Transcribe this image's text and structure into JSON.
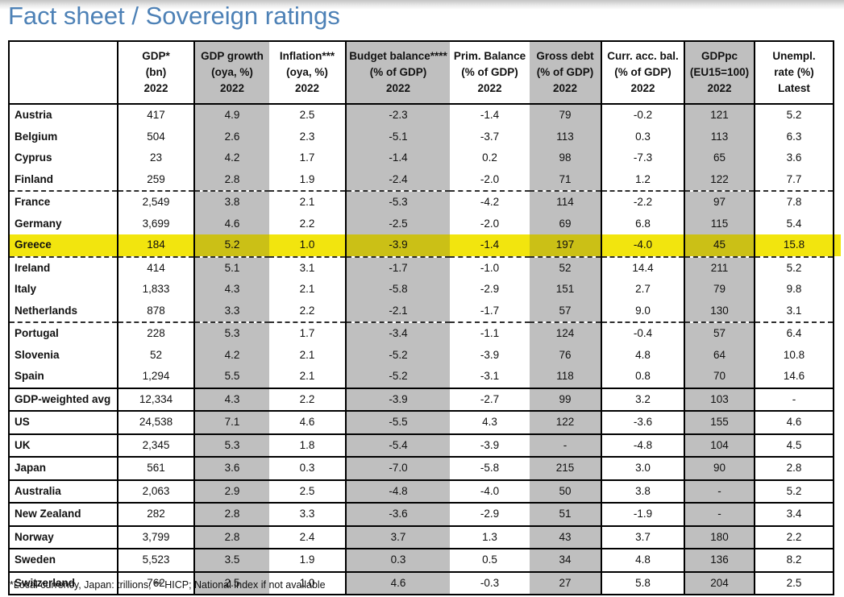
{
  "title": "Fact sheet / Sovereign ratings",
  "footnote": "*Local currency, Japan: trillions; ** HICP; National index if not available",
  "colors": {
    "title": "#4d81b6",
    "shaded_column": "#bfbfbf",
    "highlight": "#f2e50e",
    "highlight_on_shaded": "#cbc016"
  },
  "table": {
    "columns": [
      {
        "id": "country",
        "lines": [
          "",
          "",
          ""
        ],
        "shaded": false
      },
      {
        "id": "gdp",
        "lines": [
          "GDP*",
          "(bn)",
          "2022"
        ],
        "shaded": false
      },
      {
        "id": "gdp-growth",
        "lines": [
          "GDP growth",
          "(oya, %)",
          "2022"
        ],
        "shaded": true
      },
      {
        "id": "inflation",
        "lines": [
          "Inflation***",
          "(oya, %)",
          "2022"
        ],
        "shaded": false
      },
      {
        "id": "budget-balance",
        "lines": [
          "Budget balance****",
          "(% of GDP)",
          "2022"
        ],
        "shaded": true
      },
      {
        "id": "prim-balance",
        "lines": [
          "Prim. Balance",
          "(% of GDP)",
          "2022"
        ],
        "shaded": false
      },
      {
        "id": "gross-debt",
        "lines": [
          "Gross debt",
          "(% of GDP)",
          "2022"
        ],
        "shaded": true
      },
      {
        "id": "curr-acc-bal",
        "lines": [
          "Curr. acc. bal.",
          "(% of GDP)",
          "2022"
        ],
        "shaded": false
      },
      {
        "id": "gdppc",
        "lines": [
          "GDPpc",
          "(EU15=100)",
          "2022"
        ],
        "shaded": true
      },
      {
        "id": "unempl",
        "lines": [
          "Unempl.",
          "rate (%)",
          "Latest"
        ],
        "shaded": false
      }
    ],
    "rows": [
      {
        "country": "Austria",
        "values": [
          "417",
          "4.9",
          "2.5",
          "-2.3",
          "-1.4",
          "79",
          "-0.2",
          "121",
          "5.2"
        ],
        "sep": "none",
        "highlight": false
      },
      {
        "country": "Belgium",
        "values": [
          "504",
          "2.6",
          "2.3",
          "-5.1",
          "-3.7",
          "113",
          "0.3",
          "113",
          "6.3"
        ],
        "sep": "none",
        "highlight": false
      },
      {
        "country": "Cyprus",
        "values": [
          "23",
          "4.2",
          "1.7",
          "-1.4",
          "0.2",
          "98",
          "-7.3",
          "65",
          "3.6"
        ],
        "sep": "none",
        "highlight": false
      },
      {
        "country": "Finland",
        "values": [
          "259",
          "2.8",
          "1.9",
          "-2.4",
          "-2.0",
          "71",
          "1.2",
          "122",
          "7.7"
        ],
        "sep": "none",
        "highlight": false
      },
      {
        "country": "France",
        "values": [
          "2,549",
          "3.8",
          "2.1",
          "-5.3",
          "-4.2",
          "114",
          "-2.2",
          "97",
          "7.8"
        ],
        "sep": "dashed",
        "highlight": false
      },
      {
        "country": "Germany",
        "values": [
          "3,699",
          "4.6",
          "2.2",
          "-2.5",
          "-2.0",
          "69",
          "6.8",
          "115",
          "5.4"
        ],
        "sep": "none",
        "highlight": false
      },
      {
        "country": "Greece",
        "values": [
          "184",
          "5.2",
          "1.0",
          "-3.9",
          "-1.4",
          "197",
          "-4.0",
          "45",
          "15.8"
        ],
        "sep": "none",
        "highlight": true
      },
      {
        "country": "Ireland",
        "values": [
          "414",
          "5.1",
          "3.1",
          "-1.7",
          "-1.0",
          "52",
          "14.4",
          "211",
          "5.2"
        ],
        "sep": "dashed",
        "highlight": false
      },
      {
        "country": "Italy",
        "values": [
          "1,833",
          "4.3",
          "2.1",
          "-5.8",
          "-2.9",
          "151",
          "2.7",
          "79",
          "9.8"
        ],
        "sep": "none",
        "highlight": false
      },
      {
        "country": "Netherlands",
        "values": [
          "878",
          "3.3",
          "2.2",
          "-2.1",
          "-1.7",
          "57",
          "9.0",
          "130",
          "3.1"
        ],
        "sep": "none",
        "highlight": false
      },
      {
        "country": "Portugal",
        "values": [
          "228",
          "5.3",
          "1.7",
          "-3.4",
          "-1.1",
          "124",
          "-0.4",
          "57",
          "6.4"
        ],
        "sep": "dashed",
        "highlight": false
      },
      {
        "country": "Slovenia",
        "values": [
          "52",
          "4.2",
          "2.1",
          "-5.2",
          "-3.9",
          "76",
          "4.8",
          "64",
          "10.8"
        ],
        "sep": "none",
        "highlight": false
      },
      {
        "country": "Spain",
        "values": [
          "1,294",
          "5.5",
          "2.1",
          "-5.2",
          "-3.1",
          "118",
          "0.8",
          "70",
          "14.6"
        ],
        "sep": "none",
        "highlight": false
      },
      {
        "country": "GDP-weighted avg",
        "values": [
          "12,334",
          "4.3",
          "2.2",
          "-3.9",
          "-2.7",
          "99",
          "3.2",
          "103",
          "-"
        ],
        "sep": "solid",
        "highlight": false
      },
      {
        "country": "US",
        "values": [
          "24,538",
          "7.1",
          "4.6",
          "-5.5",
          "4.3",
          "122",
          "-3.6",
          "155",
          "4.6"
        ],
        "sep": "solid",
        "highlight": false
      },
      {
        "country": "UK",
        "values": [
          "2,345",
          "5.3",
          "1.8",
          "-5.4",
          "-3.9",
          "-",
          "-4.8",
          "104",
          "4.5"
        ],
        "sep": "solid",
        "highlight": false
      },
      {
        "country": "Japan",
        "values": [
          "561",
          "3.6",
          "0.3",
          "-7.0",
          "-5.8",
          "215",
          "3.0",
          "90",
          "2.8"
        ],
        "sep": "solid",
        "highlight": false
      },
      {
        "country": "Australia",
        "values": [
          "2,063",
          "2.9",
          "2.5",
          "-4.8",
          "-4.0",
          "50",
          "3.8",
          "-",
          "5.2"
        ],
        "sep": "solid",
        "highlight": false
      },
      {
        "country": "New Zealand",
        "values": [
          "282",
          "2.8",
          "3.3",
          "-3.6",
          "-2.9",
          "51",
          "-1.9",
          "-",
          "3.4"
        ],
        "sep": "solid",
        "highlight": false
      },
      {
        "country": "Norway",
        "values": [
          "3,799",
          "2.8",
          "2.4",
          "3.7",
          "1.3",
          "43",
          "3.7",
          "180",
          "2.2"
        ],
        "sep": "solid",
        "highlight": false
      },
      {
        "country": "Sweden",
        "values": [
          "5,523",
          "3.5",
          "1.9",
          "0.3",
          "0.5",
          "34",
          "4.8",
          "136",
          "8.2"
        ],
        "sep": "solid",
        "highlight": false
      },
      {
        "country": "Switzerland",
        "values": [
          "762",
          "2.5",
          "1.0",
          "4.6",
          "-0.3",
          "27",
          "5.8",
          "204",
          "2.5"
        ],
        "sep": "solid",
        "highlight": false
      }
    ]
  }
}
